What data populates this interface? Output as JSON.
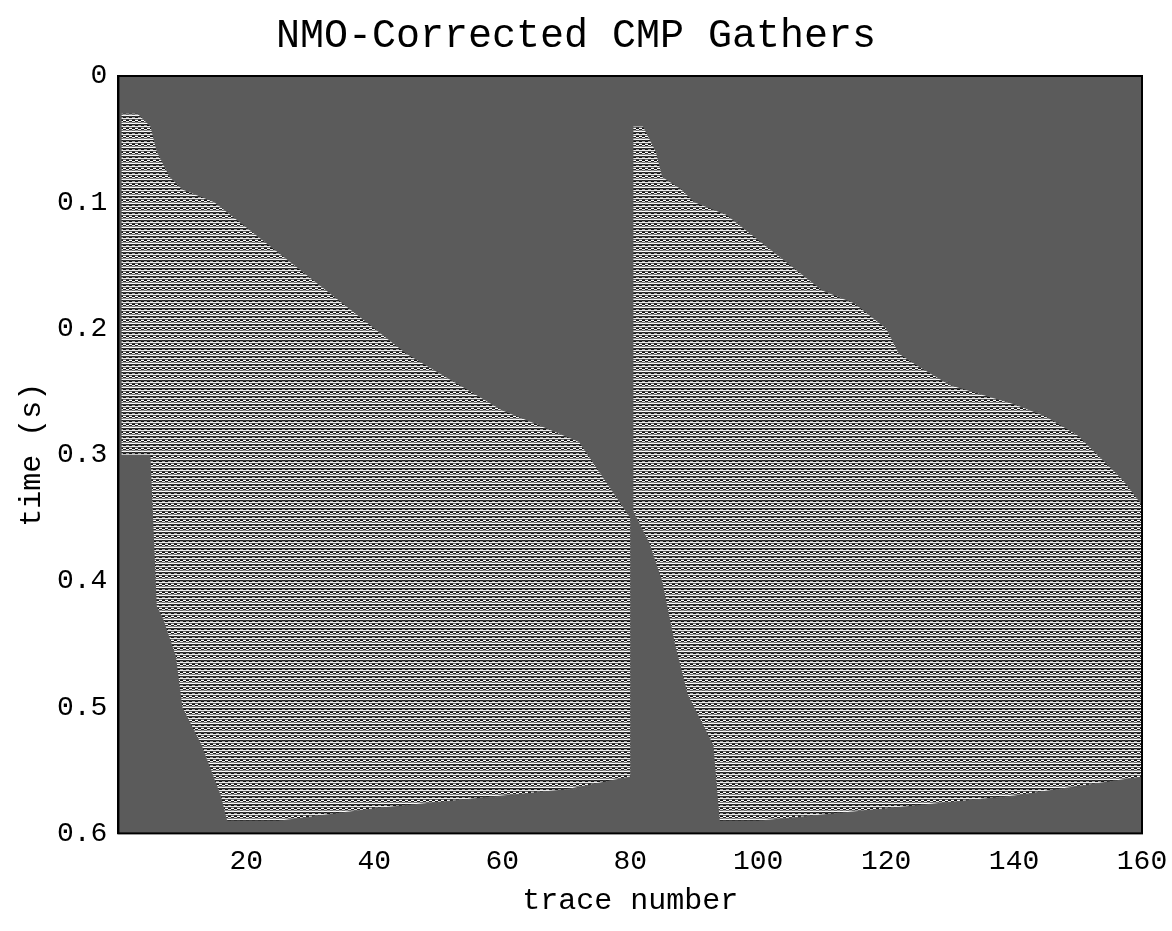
{
  "chart_data": {
    "type": "area",
    "title": "NMO-Corrected CMP Gathers",
    "x_label": "trace number",
    "y_label": "time (s)",
    "xlim": [
      0,
      160
    ],
    "xticks": [
      20,
      40,
      60,
      80,
      100,
      120,
      140,
      160
    ],
    "ylim": [
      0,
      0.6
    ],
    "yticks": [
      0,
      0.1,
      0.2,
      0.3,
      0.4,
      0.5,
      0.6
    ],
    "grid": false,
    "series": [
      {
        "x": [
          0.5,
          3,
          5,
          6,
          8,
          10,
          15,
          20,
          25,
          30,
          35,
          40,
          45,
          50,
          55,
          60,
          65,
          72,
          76,
          80,
          80,
          70,
          60,
          40,
          25,
          17,
          16,
          13,
          10,
          9,
          7,
          6,
          5,
          0.5
        ],
        "values": [
          0.03,
          0.03,
          0.04,
          0.06,
          0.08,
          0.09,
          0.1,
          0.12,
          0.14,
          0.16,
          0.18,
          0.2,
          0.22,
          0.235,
          0.25,
          0.265,
          0.275,
          0.29,
          0.32,
          0.35,
          0.555,
          0.565,
          0.57,
          0.58,
          0.59,
          0.59,
          0.57,
          0.53,
          0.5,
          0.46,
          0.43,
          0.42,
          0.3,
          0.3
        ]
      },
      {
        "x": [
          80.5,
          82,
          84,
          85,
          88,
          90,
          95,
          100,
          105,
          110,
          115,
          120,
          122,
          125,
          130,
          140,
          145,
          150,
          153,
          157,
          160,
          160,
          140,
          120,
          100,
          94,
          93,
          91,
          89,
          87,
          85,
          83,
          80.5
        ],
        "values": [
          0.04,
          0.04,
          0.06,
          0.08,
          0.09,
          0.1,
          0.11,
          0.13,
          0.15,
          0.17,
          0.18,
          0.2,
          0.22,
          0.23,
          0.245,
          0.26,
          0.27,
          0.285,
          0.3,
          0.32,
          0.34,
          0.555,
          0.57,
          0.58,
          0.59,
          0.59,
          0.53,
          0.51,
          0.49,
          0.45,
          0.4,
          0.37,
          0.345
        ]
      }
    ]
  }
}
